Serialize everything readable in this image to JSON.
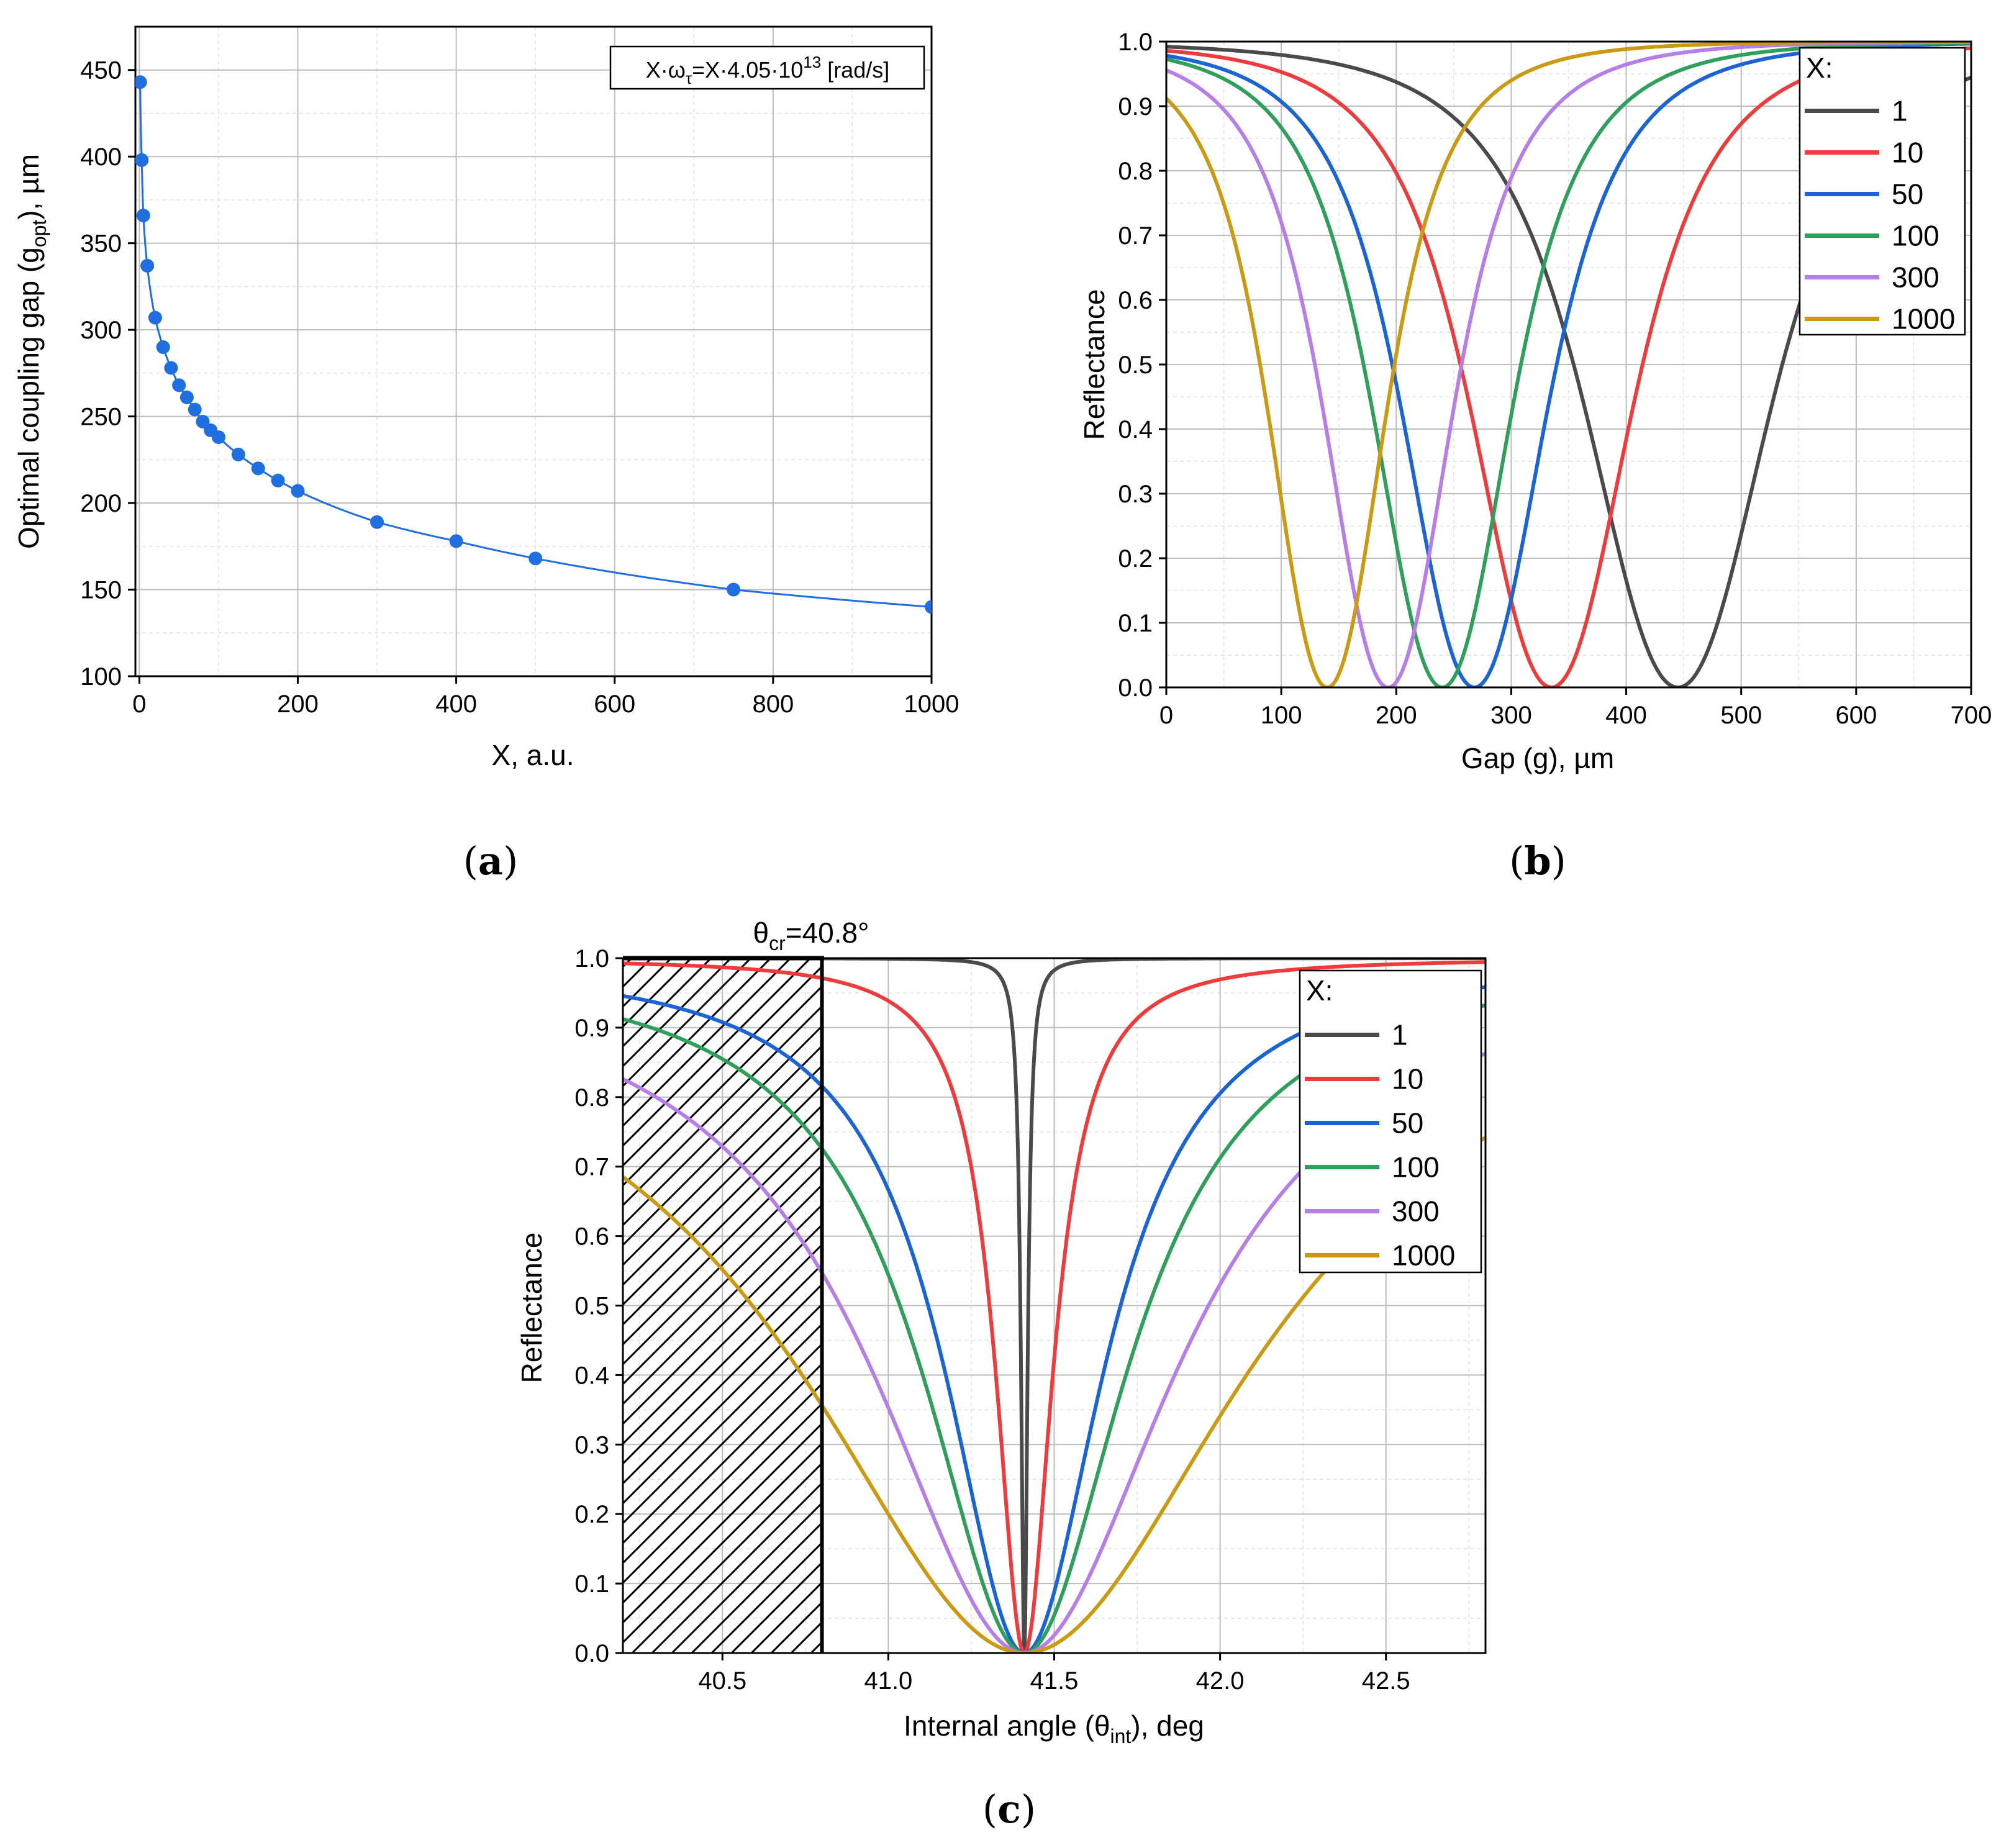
{
  "chart_data": [
    {
      "id": "a",
      "type": "scatter",
      "panel_label": "a",
      "title": "",
      "xlabel": "X, a.u.",
      "ylabel": {
        "main": "Optimal coupling gap (g",
        "sub": "opt",
        "tail": "), µm"
      },
      "xlim": [
        -5,
        1000
      ],
      "ylim": [
        100,
        475
      ],
      "xticks": [
        0,
        200,
        400,
        600,
        800,
        1000
      ],
      "yticks": [
        100,
        150,
        200,
        250,
        300,
        350,
        400,
        450
      ],
      "grid": true,
      "annotation": {
        "p1": "X·ω",
        "p1sub": "τ",
        "p2": "=X·4.05·10",
        "p2sup": "13",
        "p3": " [rad/s]"
      },
      "color": "#1f6fe0",
      "series": [
        {
          "name": "g_opt",
          "x": [
            1,
            3,
            5,
            10,
            20,
            30,
            40,
            50,
            60,
            70,
            80,
            90,
            100,
            125,
            150,
            175,
            200,
            300,
            400,
            500,
            750,
            1000
          ],
          "y": [
            443,
            398,
            366,
            337,
            307,
            290,
            278,
            268,
            261,
            254,
            247,
            242,
            238,
            228,
            220,
            213,
            207,
            189,
            178,
            168,
            150,
            140
          ]
        }
      ]
    },
    {
      "id": "b",
      "type": "line",
      "panel_label": "b",
      "title": "",
      "xlabel": "Gap (g), µm",
      "ylabel": "Reflectance",
      "xlim": [
        0,
        700
      ],
      "ylim": [
        0,
        1.0
      ],
      "xticks": [
        0,
        100,
        200,
        300,
        400,
        500,
        600,
        700
      ],
      "yticks": [
        0.0,
        0.1,
        0.2,
        0.3,
        0.4,
        0.5,
        0.6,
        0.7,
        0.8,
        0.9,
        1.0
      ],
      "grid": true,
      "legend": {
        "title": "X:",
        "position": "top-right"
      },
      "series": [
        {
          "name": "1",
          "color": "#4a4a4a",
          "min_x": 445,
          "r0": 0.985,
          "width": 118
        },
        {
          "name": "10",
          "color": "#ef3b3b",
          "min_x": 335,
          "r0": 0.95,
          "width": 103
        },
        {
          "name": "50",
          "color": "#1a64d6",
          "min_x": 268,
          "r0": 0.895,
          "width": 93
        },
        {
          "name": "100",
          "color": "#2fa05c",
          "min_x": 240,
          "r0": 0.855,
          "width": 89
        },
        {
          "name": "300",
          "color": "#b67ee6",
          "min_x": 193,
          "r0": 0.77,
          "width": 83
        },
        {
          "name": "1000",
          "color": "#cc9a10",
          "min_x": 140,
          "r0": 0.625,
          "width": 76
        }
      ]
    },
    {
      "id": "c",
      "type": "line",
      "panel_label": "c",
      "title": "",
      "xlabel": {
        "main": "Internal angle (θ",
        "sub": "int",
        "tail": "), deg"
      },
      "ylabel": "Reflectance",
      "xlim": [
        40.2,
        42.8
      ],
      "ylim": [
        0,
        1.0
      ],
      "xticks": [
        40.5,
        41.0,
        41.5,
        42.0,
        42.5
      ],
      "xtick_labels": [
        "40.5",
        "41.0",
        "41.5",
        "42.0",
        "42.5"
      ],
      "yticks": [
        0.0,
        0.1,
        0.2,
        0.3,
        0.4,
        0.5,
        0.6,
        0.7,
        0.8,
        0.9,
        1.0
      ],
      "grid": true,
      "critical_angle": {
        "value": 40.8,
        "label_main": "θ",
        "label_sub": "cr",
        "label_tail": "=40.8°"
      },
      "legend": {
        "title": "X:",
        "position": "top-right"
      },
      "resonance_angle": 41.41,
      "series": [
        {
          "name": "1",
          "color": "#4a4a4a",
          "hw": 0.012,
          "split_floor": 0.0
        },
        {
          "name": "10",
          "color": "#ef3b3b",
          "hw": 0.105,
          "split_floor": 0.0
        },
        {
          "name": "50",
          "color": "#1a64d6",
          "hw": 0.29,
          "split_floor": 0.0
        },
        {
          "name": "100",
          "color": "#2fa05c",
          "hw": 0.375,
          "split_floor": 0.0
        },
        {
          "name": "300",
          "color": "#b67ee6",
          "hw": 0.555,
          "split_floor": 0.0
        },
        {
          "name": "1000",
          "color": "#cc9a10",
          "hw": 0.82,
          "split_floor": 0.0
        }
      ]
    }
  ],
  "captions": {
    "a": "a",
    "b": "b",
    "c": "c"
  }
}
